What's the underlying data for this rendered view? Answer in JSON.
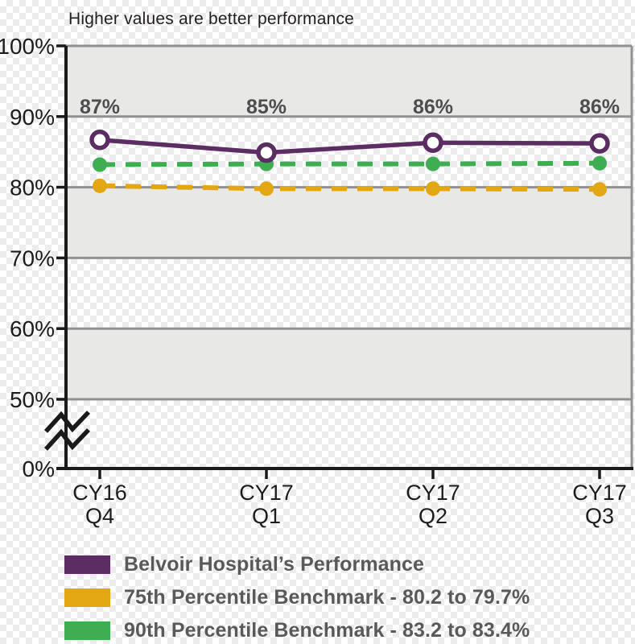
{
  "chart_data": {
    "type": "line",
    "title": "Higher values are better performance",
    "categories": [
      "CY16 Q4",
      "CY17 Q1",
      "CY17 Q2",
      "CY17 Q3"
    ],
    "y_axis": {
      "tick_labels": [
        "100%",
        "90%",
        "80%",
        "70%",
        "60%",
        "50%",
        "0%"
      ],
      "tick_values": [
        100,
        90,
        80,
        70,
        60,
        50,
        0
      ],
      "axis_break": "between 0% and 50%"
    },
    "grid": true,
    "legend_position": "bottom",
    "series": [
      {
        "key": "belvoir",
        "name": "Belvoir Hospital’s Performance",
        "color": "#5b2d63",
        "line_style": "solid",
        "marker": "open-circle",
        "values": [
          86.7,
          84.9,
          86.3,
          86.2
        ],
        "point_labels": [
          "87%",
          "85%",
          "86%",
          "86%"
        ]
      },
      {
        "key": "p75-benchmark",
        "name": "75th Percentile Benchmark - 80.2 to 79.7%",
        "color": "#e2a712",
        "line_style": "dashed",
        "marker": "filled-circle",
        "values": [
          80.2,
          79.8,
          79.8,
          79.7
        ]
      },
      {
        "key": "p90-benchmark",
        "name": "90th Percentile Benchmark - 83.2 to 83.4%",
        "color": "#3fae53",
        "line_style": "dashed",
        "marker": "filled-circle",
        "values": [
          83.2,
          83.3,
          83.3,
          83.4
        ]
      }
    ],
    "colors": {
      "band_gray": "#e8e8e7",
      "gridline": "#919191",
      "axis": "#1a1a1a",
      "tick_label": "#1c1c1c",
      "point_label": "#4d4e50",
      "legend_text": "#58595b",
      "title_text": "#231f20"
    }
  }
}
